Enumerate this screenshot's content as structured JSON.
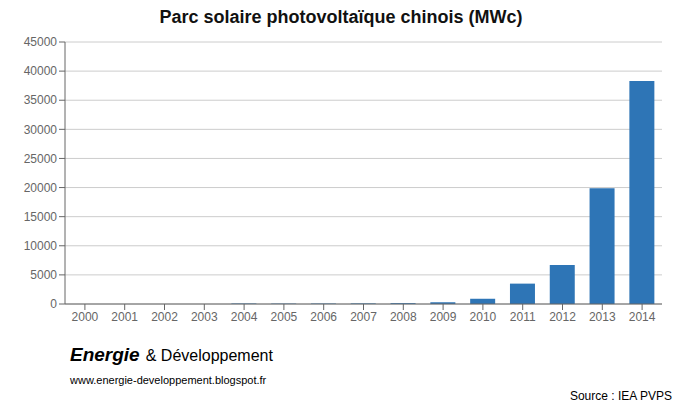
{
  "chart_data": {
    "type": "bar",
    "title": "Parc solaire photovoltaïque chinois (MWc)",
    "categories": [
      "2000",
      "2001",
      "2002",
      "2003",
      "2004",
      "2005",
      "2006",
      "2007",
      "2008",
      "2009",
      "2010",
      "2011",
      "2012",
      "2013",
      "2014"
    ],
    "values": [
      5,
      5,
      5,
      5,
      65,
      70,
      80,
      100,
      145,
      300,
      900,
      3500,
      6700,
      19900,
      38300
    ],
    "color": "#2E75B6",
    "ylim": [
      0,
      45000
    ],
    "yticks": [
      0,
      5000,
      10000,
      15000,
      20000,
      25000,
      30000,
      35000,
      40000,
      45000
    ],
    "grid": true,
    "annotations": [
      "Energie",
      "& Développement",
      "www.energie-developpement.blogspot.fr",
      "Source : IEA PVPS"
    ]
  }
}
